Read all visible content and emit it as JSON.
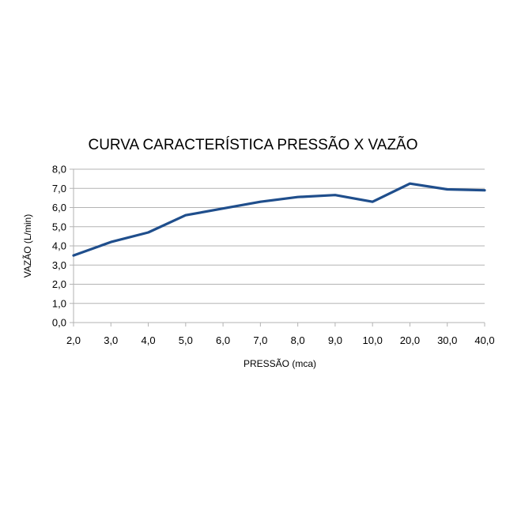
{
  "chart_data": {
    "type": "line",
    "title": "CURVA CARACTERÍSTICA PRESSÃO X VAZÃO",
    "xlabel": "PRESSÃO (mca)",
    "ylabel": "VAZÃO (L/min)",
    "categories": [
      "2,0",
      "3,0",
      "4,0",
      "5,0",
      "6,0",
      "7,0",
      "8,0",
      "9,0",
      "10,0",
      "20,0",
      "30,0",
      "40,0"
    ],
    "series": [
      {
        "values": [
          3.5,
          4.2,
          4.7,
          5.6,
          5.95,
          6.3,
          6.55,
          6.65,
          6.3,
          7.25,
          6.95,
          6.9
        ]
      }
    ],
    "y_ticks": [
      "0,0",
      "1,0",
      "2,0",
      "3,0",
      "4,0",
      "5,0",
      "6,0",
      "7,0",
      "8,0"
    ],
    "ylim": [
      0,
      8
    ],
    "grid": "horizontal",
    "legend": "none",
    "colors": {
      "line": "#1f4e8c",
      "grid": "#b3b3b3",
      "axis": "#b3b3b3"
    }
  }
}
